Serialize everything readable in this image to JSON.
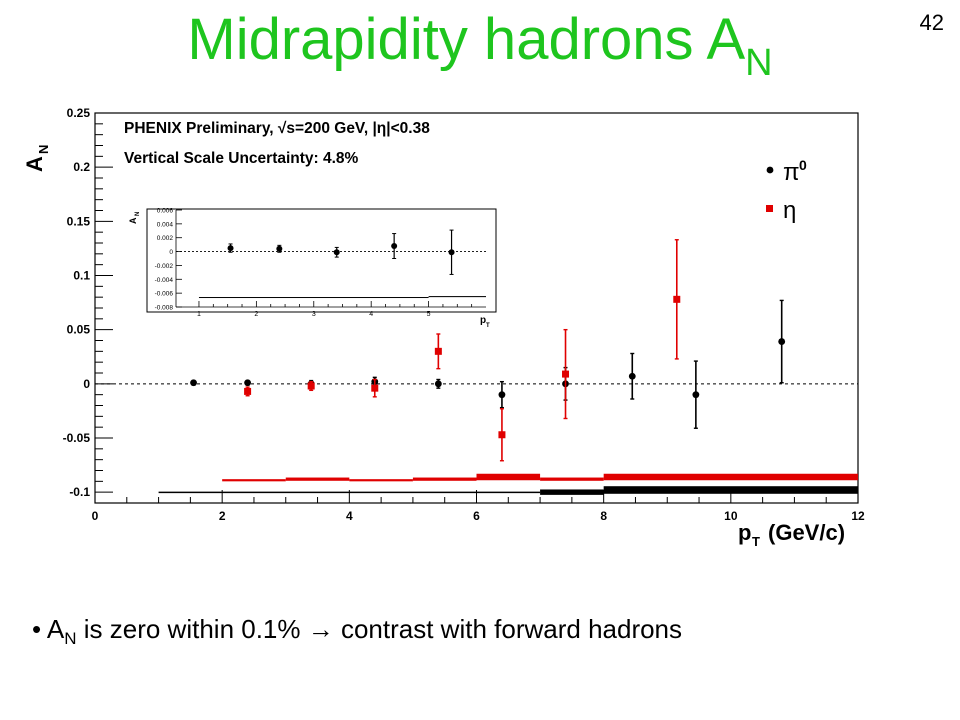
{
  "slide": {
    "title_main": "Midrapidity hadrons A",
    "title_sub": "N",
    "page_number": "42",
    "bullet_marker": "•",
    "bullet_a": "A",
    "bullet_sub": "N",
    "bullet_mid": " is zero within 0.1% ",
    "bullet_arrow": "→",
    "bullet_rest": " contrast with forward hadrons",
    "title_color": "#1ec51e"
  },
  "chart_data": {
    "type": "scatter",
    "header_line1": "PHENIX Preliminary, √s=200 GeV, |η|<0.38",
    "header_line2": "Vertical Scale Uncertainty: 4.8%",
    "xlabel": "p_T (GeV/c)",
    "ylabel": "A_N",
    "xlim": [
      0,
      12
    ],
    "ylim": [
      -0.11,
      0.25
    ],
    "x_ticks": [
      "0",
      "2",
      "4",
      "6",
      "8",
      "10",
      "12"
    ],
    "y_ticks": [
      "-0.1",
      "-0.05",
      "0",
      "0.05",
      "0.1",
      "0.15",
      "0.2",
      "0.25"
    ],
    "legend_position": "top-right",
    "zero_line": "dashed",
    "series": [
      {
        "name": "π0",
        "color": "#000000",
        "marker": "circle",
        "points": [
          {
            "x": 1.55,
            "y": 0.001,
            "err": 0.002
          },
          {
            "x": 2.4,
            "y": 0.001,
            "err": 0.002
          },
          {
            "x": 3.4,
            "y": 0.0,
            "err": 0.003
          },
          {
            "x": 4.4,
            "y": 0.002,
            "err": 0.004
          },
          {
            "x": 5.4,
            "y": 0.0,
            "err": 0.004
          },
          {
            "x": 6.4,
            "y": -0.01,
            "err": 0.012
          },
          {
            "x": 7.4,
            "y": 0.0,
            "err": 0.015
          },
          {
            "x": 8.45,
            "y": 0.007,
            "err": 0.021
          },
          {
            "x": 9.45,
            "y": -0.01,
            "err": 0.031
          },
          {
            "x": 10.8,
            "y": 0.039,
            "err": 0.038
          }
        ],
        "syst_bands": [
          {
            "x0": 1.0,
            "x1": 7.0,
            "y": -0.1,
            "h": 0.001
          },
          {
            "x0": 7.0,
            "x1": 8.0,
            "y": -0.1,
            "h": 0.005
          },
          {
            "x0": 8.0,
            "x1": 12.0,
            "y": -0.098,
            "h": 0.007
          }
        ]
      },
      {
        "name": "η",
        "color": "#e00000",
        "marker": "square",
        "points": [
          {
            "x": 2.4,
            "y": -0.007,
            "err": 0.004
          },
          {
            "x": 3.4,
            "y": -0.002,
            "err": 0.004
          },
          {
            "x": 4.4,
            "y": -0.004,
            "err": 0.008
          },
          {
            "x": 5.4,
            "y": 0.03,
            "err": 0.016
          },
          {
            "x": 6.4,
            "y": -0.047,
            "err": 0.024
          },
          {
            "x": 7.4,
            "y": 0.009,
            "err": 0.041
          },
          {
            "x": 9.15,
            "y": 0.078,
            "err": 0.055
          }
        ],
        "syst_bands": [
          {
            "x0": 2.0,
            "x1": 3.0,
            "y": -0.089,
            "h": 0.002
          },
          {
            "x0": 3.0,
            "x1": 4.0,
            "y": -0.088,
            "h": 0.003
          },
          {
            "x0": 4.0,
            "x1": 5.0,
            "y": -0.089,
            "h": 0.002
          },
          {
            "x0": 5.0,
            "x1": 6.0,
            "y": -0.088,
            "h": 0.003
          },
          {
            "x0": 6.0,
            "x1": 7.0,
            "y": -0.086,
            "h": 0.006
          },
          {
            "x0": 7.0,
            "x1": 8.0,
            "y": -0.088,
            "h": 0.003
          },
          {
            "x0": 8.0,
            "x1": 12.0,
            "y": -0.086,
            "h": 0.006
          }
        ]
      }
    ],
    "inset": {
      "xlabel": "p_T",
      "ylabel": "A_N",
      "xlim": [
        0.6,
        6.0
      ],
      "ylim": [
        -0.008,
        0.006
      ],
      "x_ticks": [
        "1",
        "2",
        "3",
        "4",
        "5"
      ],
      "y_ticks": [
        "-0.008",
        "-0.006",
        "-0.004",
        "-0.002",
        "0",
        "0.002",
        "0.004",
        "0.006"
      ],
      "points": [
        {
          "x": 1.55,
          "y": 0.0005,
          "err": 0.0006
        },
        {
          "x": 2.4,
          "y": 0.0004,
          "err": 0.0005
        },
        {
          "x": 3.4,
          "y": -0.0001,
          "err": 0.0007
        },
        {
          "x": 4.4,
          "y": 0.0008,
          "err": 0.0018
        },
        {
          "x": 5.4,
          "y": -0.0001,
          "err": 0.0032
        }
      ],
      "syst_bands": [
        {
          "x0": 1.0,
          "x1": 5.0,
          "y": -0.0066,
          "h": 8e-05
        },
        {
          "x0": 5.0,
          "x1": 6.0,
          "y": -0.0065,
          "h": 0.00015
        }
      ]
    }
  }
}
